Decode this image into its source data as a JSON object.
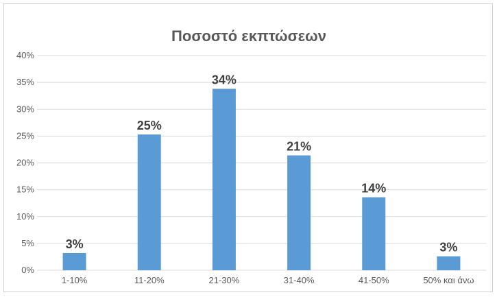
{
  "chart_data": {
    "type": "bar",
    "title": "Ποσοστό εκπτώσεων",
    "xlabel": "",
    "ylabel": "",
    "categories": [
      "1-10%",
      "11-20%",
      "21-30%",
      "31-40%",
      "41-50%",
      "50% και άνω"
    ],
    "values": [
      3.2,
      25.3,
      33.8,
      21.4,
      13.6,
      2.6
    ],
    "data_labels": [
      "3%",
      "25%",
      "34%",
      "21%",
      "14%",
      "3%"
    ],
    "ylim": [
      0,
      40
    ],
    "yticks": [
      0,
      5,
      10,
      15,
      20,
      25,
      30,
      35,
      40
    ],
    "ytick_labels": [
      "0%",
      "5%",
      "10%",
      "15%",
      "20%",
      "25%",
      "30%",
      "35%",
      "40%"
    ],
    "grid": true,
    "legend": "none",
    "bar_color": "#5b9bd5",
    "grid_color": "#d9d9d9"
  }
}
